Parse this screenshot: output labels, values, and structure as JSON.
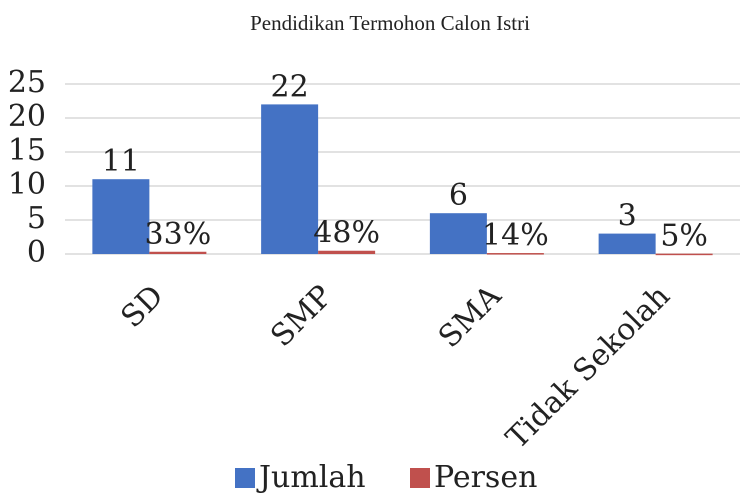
{
  "chart_data": {
    "type": "bar",
    "title": "Pendidikan Termohon Calon Istri",
    "categories": [
      "SD",
      "SMP",
      "SMA",
      "Tidak Sekolah"
    ],
    "series": [
      {
        "name": "Jumlah",
        "color": "#4472c4",
        "values": [
          11,
          22,
          6,
          3
        ]
      },
      {
        "name": "Persen",
        "color": "#c0504d",
        "values": [
          0.33,
          0.48,
          0.14,
          0.05
        ],
        "value_labels": [
          "33%",
          "48%",
          "14%",
          "5%"
        ]
      }
    ],
    "ylim": [
      0,
      25
    ],
    "yticks": [
      0,
      5,
      10,
      15,
      20,
      25
    ],
    "grid": true,
    "legend": "bottom"
  }
}
